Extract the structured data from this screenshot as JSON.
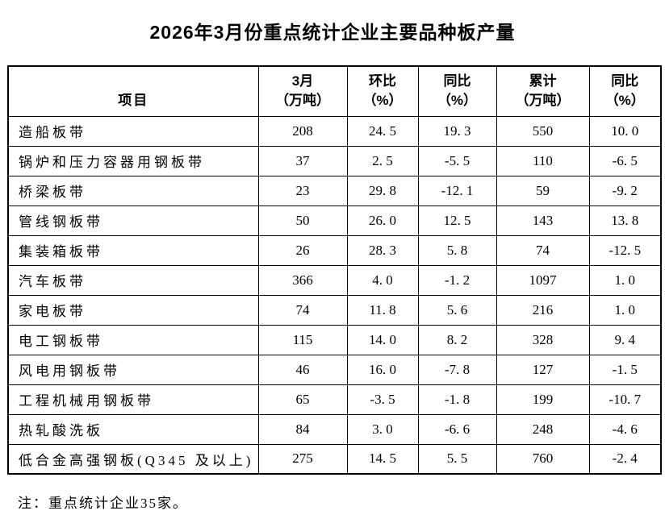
{
  "title": "2026年3月份重点统计企业主要品种板产量",
  "table": {
    "header": {
      "item": "项目",
      "cols": [
        {
          "line1": "3月",
          "line2": "（万吨）"
        },
        {
          "line1": "环比",
          "line2": "（%）"
        },
        {
          "line1": "同比",
          "line2": "（%）"
        },
        {
          "line1": "累计",
          "line2": "（万吨）"
        },
        {
          "line1": "同比",
          "line2": "（%）"
        }
      ]
    },
    "rows": [
      {
        "item": "造船板带",
        "values": [
          "208",
          "24. 5",
          "19. 3",
          "550",
          "10. 0"
        ]
      },
      {
        "item": "锅炉和压力容器用钢板带",
        "values": [
          "37",
          "2. 5",
          "-5. 5",
          "110",
          "-6. 5"
        ]
      },
      {
        "item": "桥梁板带",
        "values": [
          "23",
          "29. 8",
          "-12. 1",
          "59",
          "-9. 2"
        ]
      },
      {
        "item": "管线钢板带",
        "values": [
          "50",
          "26. 0",
          "12. 5",
          "143",
          "13. 8"
        ]
      },
      {
        "item": "集装箱板带",
        "values": [
          "26",
          "28. 3",
          "5. 8",
          "74",
          "-12. 5"
        ]
      },
      {
        "item": "汽车板带",
        "values": [
          "366",
          "4. 0",
          "-1. 2",
          "1097",
          "1. 0"
        ]
      },
      {
        "item": "家电板带",
        "values": [
          "74",
          "11. 8",
          "5. 6",
          "216",
          "1. 0"
        ]
      },
      {
        "item": "电工钢板带",
        "values": [
          "115",
          "14. 0",
          "8. 2",
          "328",
          "9. 4"
        ]
      },
      {
        "item": "风电用钢板带",
        "values": [
          "46",
          "16. 0",
          "-7. 8",
          "127",
          "-1. 5"
        ]
      },
      {
        "item": "工程机械用钢板带",
        "values": [
          "65",
          "-3. 5",
          "-1. 8",
          "199",
          "-10. 7"
        ]
      },
      {
        "item": "热轧酸洗板",
        "values": [
          "84",
          "3. 0",
          "-6. 6",
          "248",
          "-4. 6"
        ]
      },
      {
        "item": "低合金高强钢板(Q345 及以上)",
        "values": [
          "275",
          "14. 5",
          "5. 5",
          "760",
          "-2. 4"
        ]
      }
    ]
  },
  "note": "注：重点统计企业35家。"
}
